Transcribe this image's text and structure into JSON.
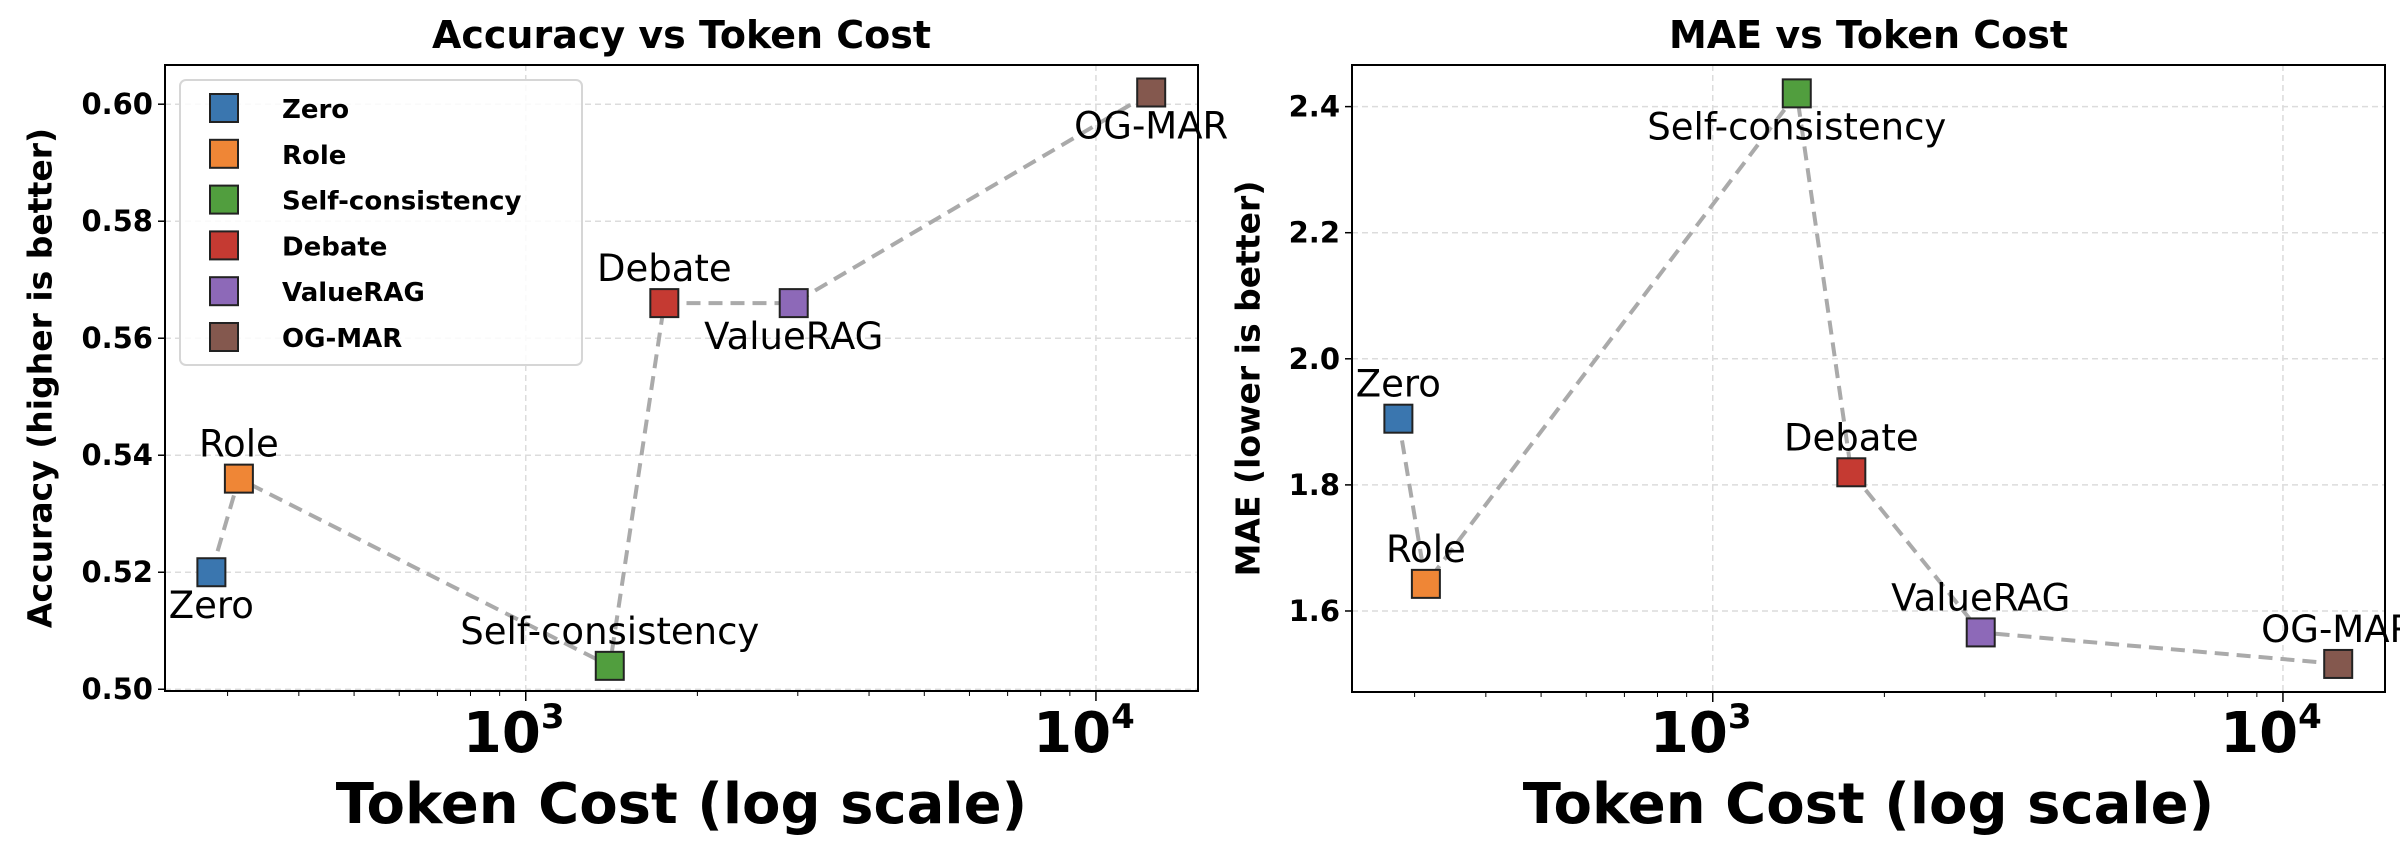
{
  "chart_data": [
    {
      "type": "scatter",
      "title": "Accuracy vs Token Cost",
      "xlabel": "Token Cost (log scale)",
      "ylabel": "Accuracy (higher is better)",
      "xscale": "log",
      "xlim": [
        233,
        15100
      ],
      "ylim": [
        0.4997,
        0.6067
      ],
      "x_ticks": [
        {
          "value": 1000,
          "base": "10",
          "exp": "3"
        },
        {
          "value": 10000,
          "base": "10",
          "exp": "4"
        }
      ],
      "y_ticks": [
        "0.50",
        "0.52",
        "0.54",
        "0.56",
        "0.58",
        "0.60"
      ],
      "grid": true,
      "legend": "upper-left",
      "connecting_line": "dashed gray",
      "points": [
        {
          "name": "Zero",
          "x": 281,
          "y": 0.52,
          "color": "#3a76af"
        },
        {
          "name": "Role",
          "x": 314,
          "y": 0.536,
          "color": "#ef8636"
        },
        {
          "name": "Self-consistency",
          "x": 1404,
          "y": 0.504,
          "color": "#519e3e"
        },
        {
          "name": "Debate",
          "x": 1750,
          "y": 0.566,
          "color": "#c53a32"
        },
        {
          "name": "ValueRAG",
          "x": 2951,
          "y": 0.566,
          "color": "#8d69b8"
        },
        {
          "name": "OG-MAR",
          "x": 12500,
          "y": 0.602,
          "color": "#84584e"
        }
      ]
    },
    {
      "type": "scatter",
      "title": "MAE vs Token Cost",
      "xlabel": "Token Cost (log scale)",
      "ylabel": "MAE (lower is better)",
      "xscale": "log",
      "xlim": [
        233,
        15100
      ],
      "ylim": [
        1.4715,
        2.466
      ],
      "x_ticks": [
        {
          "value": 1000,
          "base": "10",
          "exp": "3"
        },
        {
          "value": 10000,
          "base": "10",
          "exp": "4"
        }
      ],
      "y_ticks": [
        "1.6",
        "1.8",
        "2.0",
        "2.2",
        "2.4"
      ],
      "grid": true,
      "connecting_line": "dashed gray",
      "points": [
        {
          "name": "Zero",
          "x": 281,
          "y": 1.905,
          "color": "#3a76af"
        },
        {
          "name": "Role",
          "x": 314,
          "y": 1.643,
          "color": "#ef8636"
        },
        {
          "name": "Self-consistency",
          "x": 1404,
          "y": 2.421,
          "color": "#519e3e"
        },
        {
          "name": "Debate",
          "x": 1750,
          "y": 1.82,
          "color": "#c53a32"
        },
        {
          "name": "ValueRAG",
          "x": 2951,
          "y": 1.566,
          "color": "#8d69b8"
        },
        {
          "name": "OG-MAR",
          "x": 12500,
          "y": 1.516,
          "color": "#84584e"
        }
      ]
    }
  ]
}
